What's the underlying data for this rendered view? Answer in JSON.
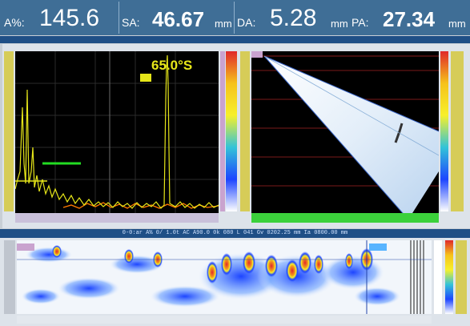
{
  "readout": {
    "a_label": "A%:",
    "a_value": "145.6",
    "sa_label": "SA:",
    "sa_value": "46.67",
    "sa_unit": "mm",
    "da_label": "DA:",
    "da_value": "5.28",
    "da_unit": "mm",
    "pa_label": "PA:",
    "pa_value": "27.34",
    "pa_unit": "mm"
  },
  "ascan": {
    "angle_label": "65.0°S"
  },
  "cscan": {
    "status": "0-0:ar A% 0/ 1.0t AC A90.0 0k 080 L 041 Gv 0202.25 mm Ia 0800.00 mm"
  },
  "colors": {
    "readout_bg": "#3f6e96",
    "signal": "#e6e619",
    "gate": "#22dd22",
    "noise": "#ff7a00"
  }
}
